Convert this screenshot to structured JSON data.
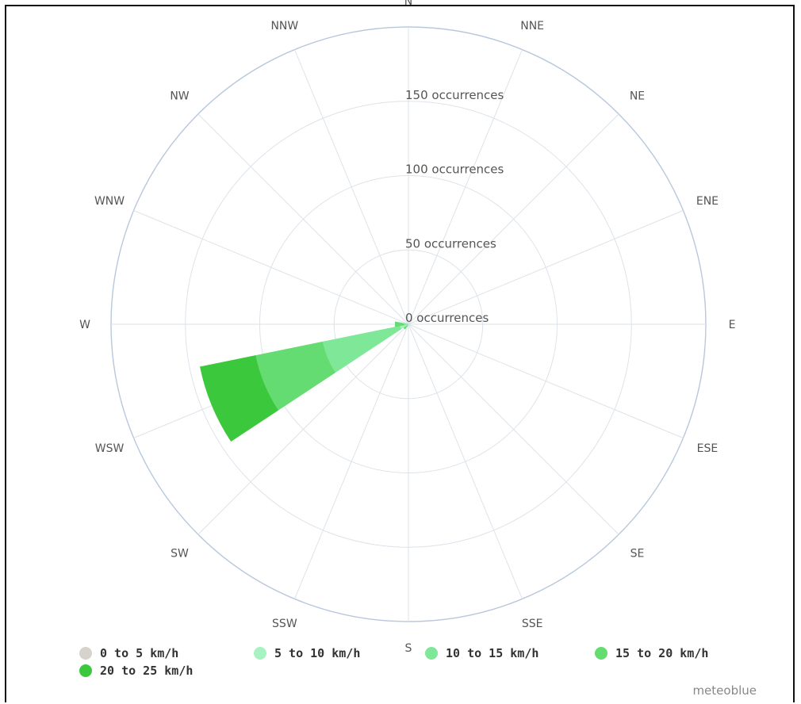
{
  "chart_data": {
    "type": "wind-rose",
    "directions": [
      "N",
      "NNE",
      "NE",
      "ENE",
      "E",
      "ESE",
      "SE",
      "SSE",
      "S",
      "SSW",
      "SW",
      "WSW",
      "W",
      "WNW",
      "NW",
      "NNW"
    ],
    "radial_axis": {
      "max": 200,
      "ticks": [
        0,
        50,
        100,
        150
      ],
      "tick_labels": [
        "0 occurrences",
        "50 occurrences",
        "100 occurrences",
        "150 occurrences"
      ]
    },
    "series": [
      {
        "name": "0 to 5 km/h",
        "color": "#d6d2cc",
        "values": [
          0,
          0,
          0,
          0,
          0,
          0,
          0,
          0,
          0,
          0,
          0,
          0,
          0,
          0,
          0,
          0
        ]
      },
      {
        "name": "5 to 10 km/h",
        "color": "#a6f2c2",
        "values": [
          0,
          0,
          0,
          0,
          0,
          0,
          0,
          0,
          0,
          0,
          0,
          6,
          0,
          0,
          0,
          0
        ]
      },
      {
        "name": "10 to 15 km/h",
        "color": "#7fe898",
        "values": [
          0,
          0,
          0,
          0,
          0,
          0,
          0,
          0,
          0,
          0,
          0,
          53,
          3,
          0,
          0,
          0
        ]
      },
      {
        "name": "15 to 20 km/h",
        "color": "#64dc72",
        "values": [
          0,
          0,
          0,
          0,
          0,
          0,
          0,
          0,
          0,
          0,
          4,
          46,
          6,
          0,
          0,
          0
        ]
      },
      {
        "name": "20 to 25 km/h",
        "color": "#3cc83c",
        "values": [
          0,
          0,
          0,
          0,
          0,
          0,
          0,
          0,
          0,
          0,
          0,
          38,
          0,
          0,
          0,
          0
        ]
      }
    ]
  },
  "credit": "meteoblue"
}
